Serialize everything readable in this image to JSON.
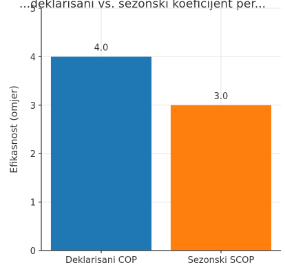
{
  "chart_data": {
    "type": "bar",
    "title": "...deklarisani vs. sezonski koeficijent per...",
    "ylabel": "Efikasnost (omjer)",
    "xlabel": "",
    "categories": [
      "Deklarisani COP",
      "Sezonski SCOP"
    ],
    "values": [
      4.0,
      3.0
    ],
    "value_labels": [
      "4.0",
      "3.0"
    ],
    "bar_colors": [
      "#1f77b4",
      "#ff7f0e"
    ],
    "ylim": [
      0,
      5
    ],
    "yticks": [
      0,
      1,
      2,
      3,
      4,
      5
    ],
    "grid": true,
    "legend": "none"
  }
}
